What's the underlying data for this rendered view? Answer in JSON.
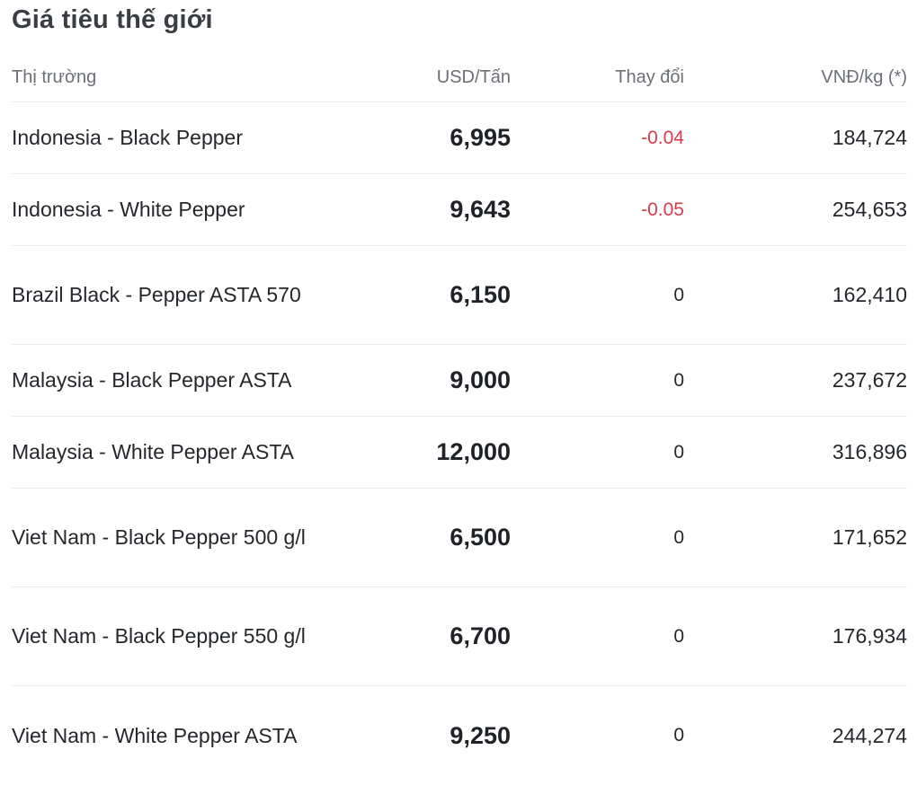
{
  "title": "Giá tiêu thế giới",
  "columns": {
    "market": "Thị trường",
    "usd": "USD/Tấn",
    "change": "Thay đổi",
    "vnd": "VNĐ/kg (*)"
  },
  "rows": [
    {
      "market": "Indonesia - Black Pepper",
      "usd": "6,995",
      "change": "-0.04",
      "vnd": "184,724"
    },
    {
      "market": "Indonesia - White Pepper",
      "usd": "9,643",
      "change": "-0.05",
      "vnd": "254,653"
    },
    {
      "market": "Brazil Black - Pepper ASTA 570",
      "usd": "6,150",
      "change": "0",
      "vnd": "162,410"
    },
    {
      "market": "Malaysia - Black Pepper ASTA",
      "usd": "9,000",
      "change": "0",
      "vnd": "237,672"
    },
    {
      "market": "Malaysia - White Pepper ASTA",
      "usd": "12,000",
      "change": "0",
      "vnd": "316,896"
    },
    {
      "market": "Viet Nam - Black Pepper 500 g/l",
      "usd": "6,500",
      "change": "0",
      "vnd": "171,652"
    },
    {
      "market": "Viet Nam - Black Pepper 550 g/l",
      "usd": "6,700",
      "change": "0",
      "vnd": "176,934"
    },
    {
      "market": "Viet Nam - White Pepper ASTA",
      "usd": "9,250",
      "change": "0",
      "vnd": "244,274"
    }
  ],
  "colors": {
    "negative": "#d33c4a",
    "text": "#24272b",
    "muted": "#6b6f76",
    "divider": "#e9eaec"
  }
}
